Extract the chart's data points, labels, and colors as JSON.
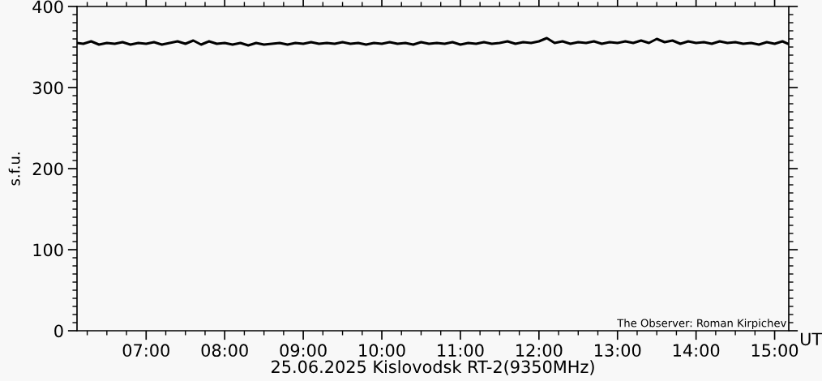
{
  "chart_data": {
    "type": "line",
    "xlabel": "25.06.2025 Kislovodsk RT-2(9350MHz)",
    "ylabel": "s.f.u.",
    "annotations": [
      "The Observer: Roman Kirpichev",
      "UT"
    ],
    "x": [
      6.12,
      6.2,
      6.3,
      6.4,
      6.5,
      6.6,
      6.7,
      6.8,
      6.9,
      7.0,
      7.1,
      7.2,
      7.3,
      7.4,
      7.5,
      7.6,
      7.7,
      7.8,
      7.9,
      8.0,
      8.1,
      8.2,
      8.3,
      8.4,
      8.5,
      8.6,
      8.7,
      8.8,
      8.9,
      9.0,
      9.1,
      9.2,
      9.3,
      9.4,
      9.5,
      9.6,
      9.7,
      9.8,
      9.9,
      10.0,
      10.1,
      10.2,
      10.3,
      10.4,
      10.5,
      10.6,
      10.7,
      10.8,
      10.9,
      11.0,
      11.1,
      11.2,
      11.3,
      11.4,
      11.5,
      11.6,
      11.7,
      11.8,
      11.9,
      12.0,
      12.1,
      12.2,
      12.3,
      12.4,
      12.5,
      12.6,
      12.7,
      12.8,
      12.9,
      13.0,
      13.1,
      13.2,
      13.3,
      13.4,
      13.5,
      13.6,
      13.7,
      13.8,
      13.9,
      14.0,
      14.1,
      14.2,
      14.3,
      14.4,
      14.5,
      14.6,
      14.7,
      14.8,
      14.9,
      15.0,
      15.1,
      15.17
    ],
    "series": [
      {
        "color": "#000000",
        "values": [
          355,
          354,
          357,
          353,
          355,
          354,
          356,
          353,
          355,
          354,
          356,
          353,
          355,
          357,
          354,
          358,
          353,
          357,
          354,
          355,
          353,
          355,
          352,
          355,
          353,
          354,
          355,
          353,
          355,
          354,
          356,
          354,
          355,
          354,
          356,
          354,
          355,
          353,
          355,
          354,
          356,
          354,
          355,
          353,
          356,
          354,
          355,
          354,
          356,
          353,
          355,
          354,
          356,
          354,
          355,
          357,
          354,
          356,
          355,
          357,
          361,
          355,
          357,
          354,
          356,
          355,
          357,
          354,
          356,
          355,
          357,
          355,
          358,
          355,
          360,
          356,
          358,
          354,
          357,
          355,
          356,
          354,
          357,
          355,
          356,
          354,
          355,
          353,
          356,
          354,
          357,
          354
        ]
      }
    ],
    "xlim": [
      6.12,
      15.18
    ],
    "ylim": [
      0,
      400
    ],
    "xticks": [
      {
        "value": 6.25,
        "label": null
      },
      {
        "value": 6.5,
        "label": null
      },
      {
        "value": 6.75,
        "label": null
      },
      {
        "value": 7,
        "label": "07:00"
      },
      {
        "value": 7.25,
        "label": null
      },
      {
        "value": 7.5,
        "label": null
      },
      {
        "value": 7.75,
        "label": null
      },
      {
        "value": 8,
        "label": "08:00"
      },
      {
        "value": 8.25,
        "label": null
      },
      {
        "value": 8.5,
        "label": null
      },
      {
        "value": 8.75,
        "label": null
      },
      {
        "value": 9,
        "label": "09:00"
      },
      {
        "value": 9.25,
        "label": null
      },
      {
        "value": 9.5,
        "label": null
      },
      {
        "value": 9.75,
        "label": null
      },
      {
        "value": 10,
        "label": "10:00"
      },
      {
        "value": 10.25,
        "label": null
      },
      {
        "value": 10.5,
        "label": null
      },
      {
        "value": 10.75,
        "label": null
      },
      {
        "value": 11,
        "label": "11:00"
      },
      {
        "value": 11.25,
        "label": null
      },
      {
        "value": 11.5,
        "label": null
      },
      {
        "value": 11.75,
        "label": null
      },
      {
        "value": 12,
        "label": "12:00"
      },
      {
        "value": 12.25,
        "label": null
      },
      {
        "value": 12.5,
        "label": null
      },
      {
        "value": 12.75,
        "label": null
      },
      {
        "value": 13,
        "label": "13:00"
      },
      {
        "value": 13.25,
        "label": null
      },
      {
        "value": 13.5,
        "label": null
      },
      {
        "value": 13.75,
        "label": null
      },
      {
        "value": 14,
        "label": "14:00"
      },
      {
        "value": 14.25,
        "label": null
      },
      {
        "value": 14.5,
        "label": null
      },
      {
        "value": 14.75,
        "label": null
      },
      {
        "value": 15,
        "label": "15:00"
      }
    ],
    "yticks": [
      0,
      {
        "value": 10,
        "label": null
      },
      {
        "value": 20,
        "label": null
      },
      {
        "value": 30,
        "label": null
      },
      {
        "value": 40,
        "label": null
      },
      {
        "value": 50,
        "label": null
      },
      {
        "value": 60,
        "label": null
      },
      {
        "value": 70,
        "label": null
      },
      {
        "value": 80,
        "label": null
      },
      {
        "value": 90,
        "label": null
      },
      100,
      {
        "value": 110,
        "label": null
      },
      {
        "value": 120,
        "label": null
      },
      {
        "value": 130,
        "label": null
      },
      {
        "value": 140,
        "label": null
      },
      {
        "value": 150,
        "label": null
      },
      {
        "value": 160,
        "label": null
      },
      {
        "value": 170,
        "label": null
      },
      {
        "value": 180,
        "label": null
      },
      {
        "value": 190,
        "label": null
      },
      200,
      {
        "value": 210,
        "label": null
      },
      {
        "value": 220,
        "label": null
      },
      {
        "value": 230,
        "label": null
      },
      {
        "value": 240,
        "label": null
      },
      {
        "value": 250,
        "label": null
      },
      {
        "value": 260,
        "label": null
      },
      {
        "value": 270,
        "label": null
      },
      {
        "value": 280,
        "label": null
      },
      {
        "value": 290,
        "label": null
      },
      300,
      {
        "value": 310,
        "label": null
      },
      {
        "value": 320,
        "label": null
      },
      {
        "value": 330,
        "label": null
      },
      {
        "value": 340,
        "label": null
      },
      {
        "value": 350,
        "label": null
      },
      {
        "value": 360,
        "label": null
      },
      {
        "value": 370,
        "label": null
      },
      {
        "value": 380,
        "label": null
      },
      {
        "value": 390,
        "label": null
      },
      400
    ],
    "grid": false,
    "legend": false
  }
}
